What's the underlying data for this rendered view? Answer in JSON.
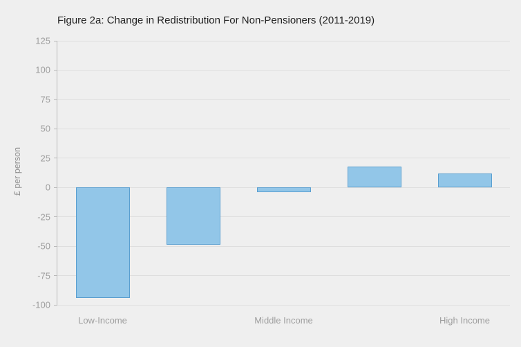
{
  "chart_data": {
    "type": "bar",
    "title": "Figure 2a: Change in Redistribution For Non-Pensioners (2011-2019)",
    "ylabel": "£ per person",
    "xlabel": "",
    "categories": [
      "Low-Income",
      "",
      "Middle Income",
      "",
      "High Income"
    ],
    "values": [
      -94,
      -49,
      -4,
      18,
      12
    ],
    "ylim": [
      -100,
      125
    ],
    "yticks": [
      125,
      100,
      75,
      50,
      25,
      0,
      -25,
      -50,
      -75,
      -100
    ],
    "grid": true,
    "legend": false
  },
  "colors": {
    "background": "#efefef",
    "bar_fill": "#92c6e8",
    "bar_border": "#5a9fd0",
    "gridline": "#dedede",
    "axis_line": "#b8b8b8",
    "tick_label_text": "#9e9e9e",
    "title_text": "#212121"
  }
}
